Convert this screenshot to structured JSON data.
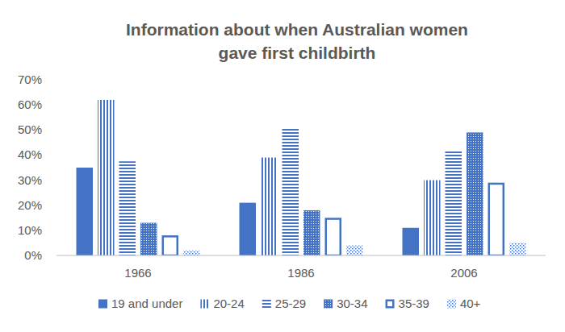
{
  "chart_data": {
    "type": "bar",
    "title": "Information about when Australian women gave first childbirth",
    "categories": [
      "1966",
      "1986",
      "2006"
    ],
    "series": [
      {
        "name": "19 and under",
        "color": "#4472c4",
        "values": [
          35,
          21,
          11
        ]
      },
      {
        "name": "20-24",
        "color": "#4472c4",
        "values": [
          62,
          39,
          30
        ]
      },
      {
        "name": "25-29",
        "color": "#4472c4",
        "values": [
          37.5,
          51,
          42
        ]
      },
      {
        "name": "30-34",
        "color": "#4472c4",
        "values": [
          13,
          18,
          49
        ]
      },
      {
        "name": "35-39",
        "color": "#4472c4",
        "values": [
          8,
          15,
          29
        ]
      },
      {
        "name": "40+",
        "color": "#4472c4",
        "values": [
          2,
          4,
          5
        ]
      }
    ],
    "ylim": [
      0,
      70
    ],
    "yticks": [
      {
        "value": 0,
        "label": "0%"
      },
      {
        "value": 10,
        "label": "10%"
      },
      {
        "value": 20,
        "label": "20%"
      },
      {
        "value": 30,
        "label": "30%"
      },
      {
        "value": 40,
        "label": "40%"
      },
      {
        "value": 50,
        "label": "50%"
      },
      {
        "value": 60,
        "label": "60%"
      },
      {
        "value": 70,
        "label": "70%"
      }
    ],
    "grid": false,
    "legend": "bottom"
  }
}
